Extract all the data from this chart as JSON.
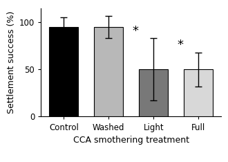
{
  "categories": [
    "Control",
    "Washed",
    "Light",
    "Full"
  ],
  "values": [
    95,
    95,
    50,
    50
  ],
  "errors": [
    10,
    12,
    33,
    18
  ],
  "bar_colors": [
    "#000000",
    "#b8b8b8",
    "#787878",
    "#d8d8d8"
  ],
  "bar_edgecolors": [
    "#000000",
    "#000000",
    "#000000",
    "#000000"
  ],
  "asterisks": [
    false,
    false,
    true,
    true
  ],
  "ylabel": "Settlement success (%)",
  "xlabel": "CCA smothering treatment",
  "ylim": [
    0,
    115
  ],
  "yticks": [
    0,
    50,
    100
  ],
  "title": "",
  "bar_width": 0.65,
  "asterisk_fontsize": 13,
  "label_fontsize": 9,
  "tick_fontsize": 8.5
}
